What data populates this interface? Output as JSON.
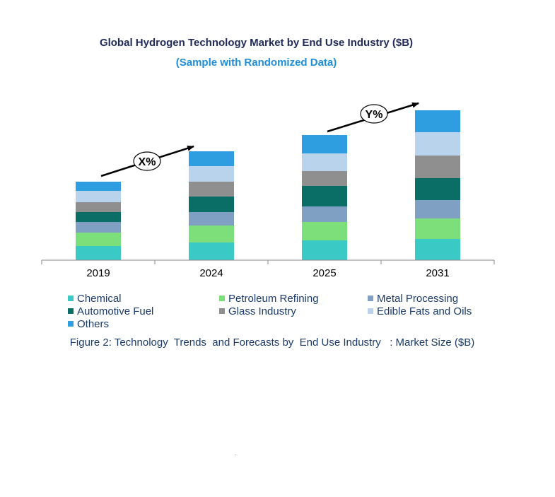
{
  "chart_data": {
    "type": "bar",
    "stacked": true,
    "title": "Global Hydrogen Technology Market by End Use Industry ($B)",
    "subtitle": "(Sample with Randomized Data)",
    "categories": [
      "2019",
      "2024",
      "2025",
      "2031"
    ],
    "series": [
      {
        "name": "Chemical",
        "color": "#3ac9c4",
        "values": [
          20,
          25,
          28,
          30
        ]
      },
      {
        "name": "Petroleum Refining",
        "color": "#7ddf7a",
        "values": [
          19,
          24,
          26,
          29
        ]
      },
      {
        "name": "Metal Processing",
        "color": "#7f9fc3",
        "values": [
          15,
          19,
          22,
          26
        ]
      },
      {
        "name": "Automotive Fuel",
        "color": "#0b6e66",
        "values": [
          14,
          22,
          29,
          31
        ]
      },
      {
        "name": "Glass Industry",
        "color": "#8f8f8f",
        "values": [
          14,
          21,
          21,
          32
        ]
      },
      {
        "name": "Edible Fats and Oils",
        "color": "#b9d3ec",
        "values": [
          16,
          22,
          25,
          33
        ]
      },
      {
        "name": "Others",
        "color": "#2f9ee0",
        "values": [
          13,
          21,
          26,
          31
        ]
      }
    ],
    "annotations": [
      "X%",
      "Y%"
    ],
    "legend_position": "bottom",
    "grid": false
  },
  "caption": "Figure 2: Technology  Trends  and Forecasts by  End Use Industry   : Market Size ($B)"
}
